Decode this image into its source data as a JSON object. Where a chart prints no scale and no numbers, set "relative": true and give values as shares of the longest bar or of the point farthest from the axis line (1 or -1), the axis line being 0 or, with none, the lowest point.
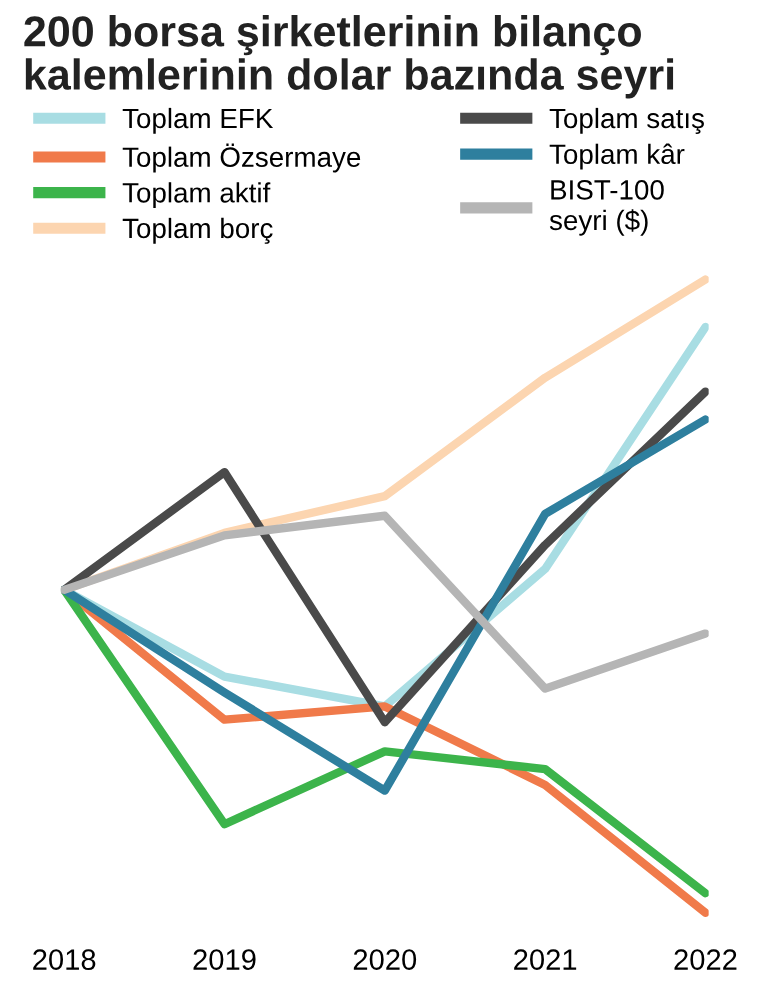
{
  "chart_data": {
    "type": "line",
    "title": "200 borsa şirketlerinin bilanço\nkalemlerinin dolar bazında seyri",
    "relative": true,
    "categories": [
      "2018",
      "2019",
      "2020",
      "2021",
      "2022"
    ],
    "legend": "top left",
    "grid": false,
    "marker": "none",
    "line_style": "solid",
    "series": [
      {
        "name": "Toplam EFK",
        "color": "#a8dde3",
        "values": [
          0.51,
          0.373,
          0.326,
          0.543,
          0.925
        ]
      },
      {
        "name": "Toplam Özsermaye",
        "color": "#f07a4a",
        "values": [
          0.51,
          0.305,
          0.326,
          0.202,
          0
        ]
      },
      {
        "name": "Toplam aktif",
        "color": "#3cb44b",
        "values": [
          0.51,
          0.14,
          0.255,
          0.227,
          0.031
        ]
      },
      {
        "name": "Toplam borç",
        "color": "#fcd5b0",
        "values": [
          0.51,
          0.6,
          0.658,
          0.845,
          1
        ]
      },
      {
        "name": "Toplam satış",
        "color": "#4a4a4a",
        "values": [
          0.51,
          0.696,
          0.301,
          0.581,
          0.823
        ]
      },
      {
        "name": "Toplam kâr",
        "color": "#2e7f9e",
        "values": [
          0.51,
          0.348,
          0.193,
          0.63,
          0.779
        ]
      },
      {
        "name": "BIST-100\nseyri ($)",
        "color": "#b5b5b5",
        "values": [
          0.51,
          0.596,
          0.627,
          0.354,
          0.441
        ]
      }
    ]
  }
}
